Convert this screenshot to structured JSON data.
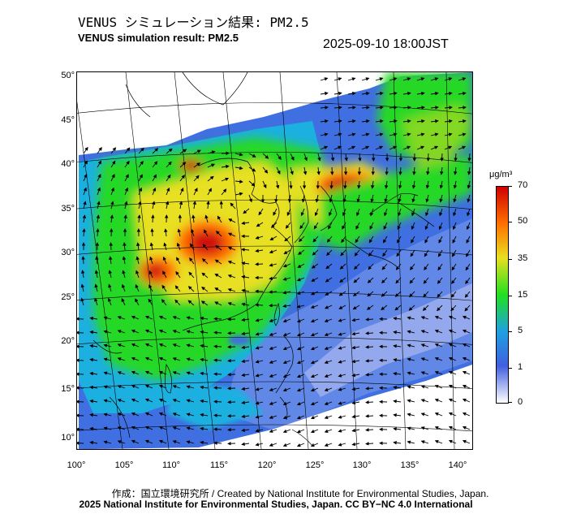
{
  "title_ja": "VENUS シミュレーション結果: PM2.5",
  "title_en": "VENUS simulation result: PM2.5",
  "timestamp": "2025-09-10 18:00JST",
  "map": {
    "lat_labels": [
      "50°",
      "45°",
      "40°",
      "35°",
      "30°",
      "25°",
      "20°",
      "15°",
      "10°"
    ],
    "lon_labels": [
      "100°",
      "105°",
      "110°",
      "115°",
      "120°",
      "125°",
      "130°",
      "135°",
      "140°"
    ]
  },
  "colorbar": {
    "unit": "μg/m³",
    "ticks": [
      "70",
      "50",
      "35",
      "15",
      "5",
      "1",
      "0"
    ],
    "colors": [
      "#ffffff",
      "#4060e0",
      "#20a0e0",
      "#20e020",
      "#e8e020",
      "#ff7000",
      "#d00000"
    ]
  },
  "credits": {
    "line1": "作成：国立環境研究所 / Created by National Institute for Environmental Studies, Japan.",
    "line2": "2025 National Institute for Environmental Studies, Japan. CC BY−NC 4.0 International"
  }
}
